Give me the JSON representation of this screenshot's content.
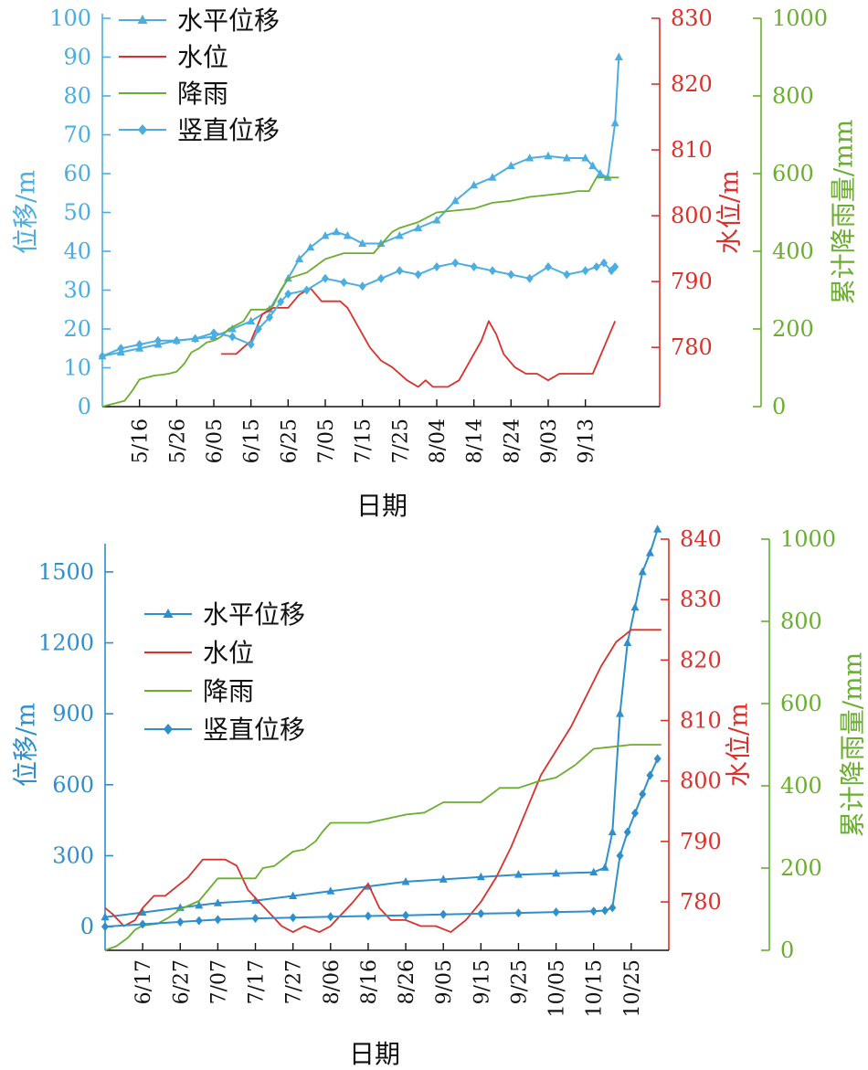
{
  "colors": {
    "displacement_top": "#4BADE0",
    "displacement_bottom": "#2E8FCB",
    "water_level": "#D9312B",
    "rainfall": "#6AAE2F",
    "axis_displacement": "#3A9BD3",
    "axis_water": "#D9312B",
    "axis_rain": "#6AAE2F",
    "text": "#111111"
  },
  "chart_data": [
    {
      "type": "line",
      "xlabel": "日期",
      "y_left_label": "位移/m",
      "y_right1_label": "水位/m",
      "y_right2_label": "累计降雨量/mm",
      "x_ticks": [
        "5/16",
        "5/26",
        "6/05",
        "6/15",
        "6/25",
        "7/05",
        "7/15",
        "7/25",
        "8/04",
        "8/14",
        "8/24",
        "9/03",
        "9/13"
      ],
      "x_tick_days": [
        10,
        20,
        30,
        40,
        50,
        60,
        70,
        80,
        90,
        100,
        110,
        120,
        130
      ],
      "xlim": [
        0,
        150
      ],
      "y_left_ticks": [
        "0",
        "10",
        "20",
        "30",
        "40",
        "50",
        "60",
        "70",
        "80",
        "90",
        "100"
      ],
      "y_left_lim": [
        0,
        100
      ],
      "y_right1_ticks": [
        "780",
        "790",
        "800",
        "810",
        "820",
        "830"
      ],
      "y_right1_lim": [
        771,
        830
      ],
      "y_right2_ticks": [
        "0",
        "200",
        "400",
        "600",
        "800",
        "1000"
      ],
      "y_right2_lim": [
        0,
        1000
      ],
      "legend": [
        "水平位移",
        "水位",
        "降雨",
        "竖直位移"
      ],
      "legend_position": "top-left",
      "series": [
        {
          "name": "水平位移",
          "axis": "left",
          "marker": "triangle",
          "x": [
            0,
            5,
            10,
            15,
            20,
            25,
            30,
            35,
            40,
            45,
            50,
            53,
            56,
            60,
            63,
            66,
            70,
            75,
            80,
            85,
            90,
            95,
            100,
            105,
            110,
            115,
            120,
            125,
            130,
            132,
            134,
            136,
            138,
            139
          ],
          "y": [
            13,
            14,
            15,
            16,
            17,
            17.5,
            18,
            20,
            22,
            25,
            33,
            38,
            41,
            44,
            45,
            44,
            42,
            42,
            44,
            46,
            48,
            53,
            57,
            59,
            62,
            64,
            64.5,
            64,
            64,
            62,
            60,
            59,
            73,
            90
          ]
        },
        {
          "name": "水位",
          "axis": "right1",
          "x": [
            32,
            36,
            38,
            40,
            43,
            46,
            50,
            53,
            56,
            59,
            62,
            64,
            66,
            69,
            72,
            75,
            78,
            82,
            85,
            87,
            89,
            93,
            96,
            99,
            102,
            104,
            106,
            108,
            111,
            114,
            117,
            120,
            123,
            126,
            129,
            132,
            135,
            138
          ],
          "y": [
            779,
            779,
            780,
            781,
            785,
            786,
            786,
            788,
            789,
            787,
            787,
            787,
            786,
            783,
            780,
            778,
            777,
            775,
            774,
            775,
            774,
            774,
            775,
            778,
            781,
            784,
            782,
            779,
            777,
            776,
            776,
            775,
            776,
            776,
            776,
            776,
            780,
            784
          ]
        },
        {
          "name": "降雨",
          "axis": "right2",
          "x": [
            0,
            2,
            4,
            6,
            8,
            10,
            12,
            14,
            16,
            18,
            20,
            22,
            24,
            26,
            28,
            30,
            32,
            34,
            36,
            38,
            40,
            42,
            44,
            46,
            48,
            50,
            55,
            60,
            65,
            70,
            73,
            78,
            80,
            85,
            90,
            95,
            100,
            105,
            110,
            115,
            120,
            125,
            128,
            131,
            133,
            136,
            139
          ],
          "y": [
            0,
            5,
            10,
            15,
            40,
            70,
            75,
            80,
            82,
            85,
            90,
            110,
            140,
            150,
            165,
            170,
            180,
            200,
            210,
            220,
            250,
            250,
            250,
            260,
            300,
            330,
            345,
            380,
            395,
            395,
            395,
            450,
            460,
            475,
            500,
            505,
            510,
            525,
            530,
            540,
            545,
            550,
            555,
            555,
            590,
            590,
            590
          ]
        },
        {
          "name": "竖直位移",
          "axis": "left",
          "marker": "diamond",
          "x": [
            0,
            5,
            10,
            15,
            20,
            25,
            30,
            35,
            40,
            42,
            45,
            48,
            50,
            55,
            60,
            65,
            70,
            75,
            80,
            85,
            90,
            95,
            100,
            105,
            110,
            115,
            120,
            125,
            130,
            133,
            135,
            137,
            138
          ],
          "y": [
            13,
            15,
            16,
            17,
            17,
            17.5,
            19,
            18,
            16,
            20,
            23,
            27,
            29,
            30,
            33,
            32,
            31,
            33,
            35,
            34,
            36,
            37,
            36,
            35,
            34,
            33,
            36,
            34,
            35,
            36,
            37,
            35,
            36
          ]
        }
      ]
    },
    {
      "type": "line",
      "xlabel": "日期",
      "y_left_label": "位移/m",
      "y_right1_label": "水位/m",
      "y_right2_label": "累计降雨量/mm",
      "x_ticks": [
        "6/17",
        "6/27",
        "7/07",
        "7/17",
        "7/27",
        "8/06",
        "8/16",
        "8/26",
        "9/05",
        "9/15",
        "9/25",
        "10/05",
        "10/15",
        "10/25"
      ],
      "x_tick_days": [
        10,
        20,
        30,
        40,
        50,
        60,
        70,
        80,
        90,
        100,
        110,
        120,
        130,
        140
      ],
      "xlim": [
        0,
        150
      ],
      "y_left_ticks": [
        "0",
        "300",
        "600",
        "900",
        "1200",
        "1500"
      ],
      "y_left_lim": [
        -100,
        1600
      ],
      "y_right1_ticks": [
        "780",
        "790",
        "800",
        "810",
        "820",
        "830",
        "840"
      ],
      "y_right1_lim": [
        772,
        840
      ],
      "y_right2_ticks": [
        "0",
        "200",
        "400",
        "600",
        "800",
        "1000"
      ],
      "y_right2_lim": [
        0,
        1000
      ],
      "legend": [
        "水平位移",
        "水位",
        "降雨",
        "竖直位移"
      ],
      "legend_position": "top-left",
      "series": [
        {
          "name": "水平位移",
          "axis": "left",
          "marker": "triangle",
          "x": [
            0,
            10,
            20,
            25,
            30,
            40,
            50,
            60,
            70,
            80,
            90,
            100,
            110,
            120,
            130,
            133,
            135,
            137,
            139,
            141,
            143,
            145,
            147
          ],
          "y": [
            40,
            60,
            80,
            90,
            100,
            110,
            130,
            150,
            170,
            190,
            200,
            210,
            220,
            225,
            230,
            250,
            400,
            900,
            1200,
            1350,
            1500,
            1580,
            1680
          ]
        },
        {
          "name": "水位",
          "axis": "right1",
          "x": [
            0,
            2,
            5,
            8,
            10,
            13,
            16,
            18,
            22,
            26,
            30,
            32,
            35,
            38,
            41,
            44,
            47,
            50,
            53,
            57,
            60,
            63,
            66,
            70,
            73,
            76,
            80,
            84,
            88,
            92,
            96,
            100,
            104,
            108,
            112,
            116,
            120,
            124,
            128,
            132,
            136,
            140,
            144,
            148
          ],
          "y": [
            779,
            778,
            776,
            777,
            779,
            781,
            781,
            782,
            784,
            787,
            787,
            787,
            786,
            782,
            780,
            778,
            776,
            775,
            776,
            775,
            776,
            778,
            780,
            783,
            779,
            777,
            777,
            776,
            776,
            775,
            777,
            780,
            784,
            789,
            795,
            801,
            805,
            809,
            814,
            819,
            823,
            825,
            825,
            825
          ]
        },
        {
          "name": "降雨",
          "axis": "right2",
          "x": [
            0,
            3,
            6,
            8,
            10,
            14,
            17,
            20,
            25,
            30,
            35,
            40,
            42,
            45,
            50,
            53,
            56,
            58,
            60,
            65,
            70,
            75,
            80,
            85,
            90,
            95,
            100,
            105,
            110,
            115,
            120,
            125,
            130,
            135,
            140,
            145,
            148
          ],
          "y": [
            0,
            10,
            30,
            50,
            60,
            65,
            80,
            100,
            120,
            175,
            175,
            175,
            200,
            205,
            240,
            245,
            265,
            290,
            310,
            310,
            310,
            320,
            330,
            335,
            360,
            360,
            360,
            395,
            395,
            410,
            420,
            450,
            490,
            495,
            500,
            500,
            500
          ]
        },
        {
          "name": "竖直位移",
          "axis": "left",
          "marker": "diamond",
          "x": [
            0,
            10,
            20,
            25,
            30,
            40,
            50,
            60,
            70,
            80,
            90,
            100,
            110,
            120,
            130,
            133,
            135,
            137,
            139,
            141,
            143,
            145,
            147
          ],
          "y": [
            0,
            10,
            20,
            25,
            30,
            35,
            38,
            42,
            45,
            48,
            52,
            55,
            58,
            62,
            65,
            68,
            80,
            300,
            400,
            480,
            560,
            640,
            710
          ]
        }
      ]
    }
  ]
}
